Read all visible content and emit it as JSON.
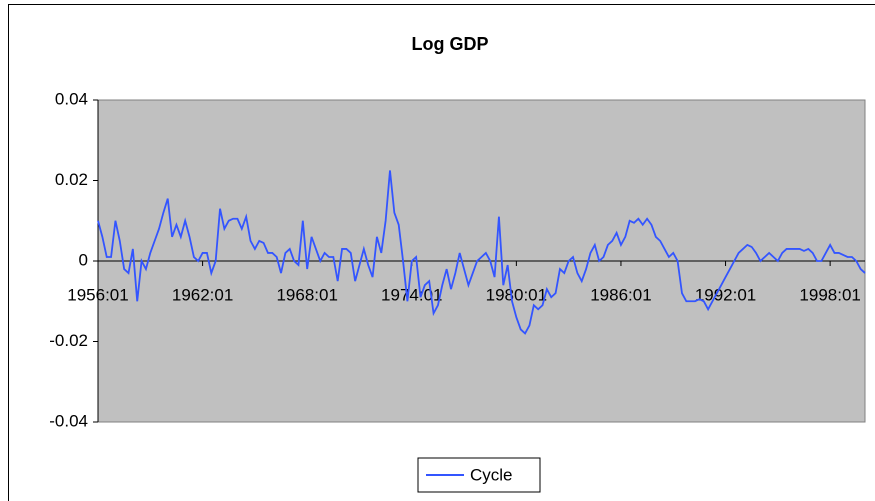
{
  "chart_data": {
    "type": "line",
    "title": "Log GDP",
    "categories": [
      "1956:01",
      null,
      null,
      null,
      null,
      null,
      null,
      null,
      null,
      null,
      null,
      null,
      null,
      null,
      null,
      null,
      null,
      null,
      null,
      null,
      null,
      null,
      null,
      null,
      "1962:01",
      null,
      null,
      null,
      null,
      null,
      null,
      null,
      null,
      null,
      null,
      null,
      null,
      null,
      null,
      null,
      null,
      null,
      null,
      null,
      null,
      null,
      null,
      null,
      "1968:01",
      null,
      null,
      null,
      null,
      null,
      null,
      null,
      null,
      null,
      null,
      null,
      null,
      null,
      null,
      null,
      null,
      null,
      null,
      null,
      null,
      null,
      null,
      null,
      "1974:01",
      null,
      null,
      null,
      null,
      null,
      null,
      null,
      null,
      null,
      null,
      null,
      null,
      null,
      null,
      null,
      null,
      null,
      null,
      null,
      null,
      null,
      null,
      null,
      "1980:01",
      null,
      null,
      null,
      null,
      null,
      null,
      null,
      null,
      null,
      null,
      null,
      null,
      null,
      null,
      null,
      null,
      null,
      null,
      null,
      null,
      null,
      null,
      null,
      "1986:01",
      null,
      null,
      null,
      null,
      null,
      null,
      null,
      null,
      null,
      null,
      null,
      null,
      null,
      null,
      null,
      null,
      null,
      null,
      null,
      null,
      null,
      null,
      null,
      "1992:01",
      null,
      null,
      null,
      null,
      null,
      null,
      null,
      null,
      null,
      null,
      null,
      null,
      null,
      null,
      null,
      null,
      null,
      null,
      null,
      null,
      null,
      null,
      null,
      "1998:01",
      null,
      null,
      null,
      null,
      null,
      null,
      null,
      null
    ],
    "series": [
      {
        "name": "Cycle",
        "color": "#3355ff",
        "values": [
          0.01,
          0.006,
          0.001,
          0.001,
          0.01,
          0.005,
          -0.002,
          -0.003,
          0.003,
          -0.01,
          0.0,
          -0.002,
          0.002,
          0.005,
          0.008,
          0.012,
          0.0155,
          0.006,
          0.009,
          0.006,
          0.01,
          0.006,
          0.001,
          0.0,
          0.002,
          0.002,
          -0.003,
          0.0,
          0.013,
          0.008,
          0.01,
          0.0105,
          0.0105,
          0.008,
          0.011,
          0.005,
          0.003,
          0.005,
          0.0045,
          0.002,
          0.002,
          0.001,
          -0.003,
          0.002,
          0.003,
          0.0,
          -0.001,
          0.01,
          -0.002,
          0.006,
          0.003,
          0.0,
          0.002,
          0.001,
          0.001,
          -0.005,
          0.003,
          0.003,
          0.002,
          -0.005,
          -0.001,
          0.003,
          -0.001,
          -0.004,
          0.006,
          0.002,
          0.01,
          0.0225,
          0.012,
          0.009,
          0.0,
          -0.01,
          0.0,
          0.001,
          -0.009,
          -0.006,
          -0.005,
          -0.013,
          -0.011,
          -0.006,
          -0.002,
          -0.007,
          -0.003,
          0.002,
          -0.002,
          -0.006,
          -0.003,
          0.0,
          0.001,
          0.002,
          0.0,
          -0.004,
          0.011,
          -0.006,
          -0.001,
          -0.01,
          -0.014,
          -0.017,
          -0.018,
          -0.016,
          -0.011,
          -0.012,
          -0.011,
          -0.007,
          -0.009,
          -0.008,
          -0.002,
          -0.003,
          0.0,
          0.001,
          -0.003,
          -0.005,
          -0.002,
          0.002,
          0.004,
          0.0,
          0.001,
          0.004,
          0.005,
          0.007,
          0.004,
          0.006,
          0.01,
          0.0095,
          0.0105,
          0.009,
          0.0105,
          0.009,
          0.006,
          0.005,
          0.003,
          0.001,
          0.002,
          0.0,
          -0.008,
          -0.01,
          -0.01,
          -0.01,
          -0.0095,
          -0.01,
          -0.012,
          -0.01,
          -0.008,
          -0.006,
          -0.004,
          -0.002,
          0.0,
          0.002,
          0.003,
          0.004,
          0.0035,
          0.002,
          0.0,
          0.001,
          0.002,
          0.001,
          0.0,
          0.002,
          0.003,
          0.003,
          0.003,
          0.003,
          0.0025,
          0.003,
          0.002,
          0.0,
          0.0,
          0.002,
          0.004,
          0.002,
          0.002,
          0.0015,
          0.001,
          0.001,
          0.0,
          -0.002,
          -0.003
        ]
      }
    ],
    "ylim": [
      -0.04,
      0.04
    ],
    "yticks": [
      -0.04,
      -0.02,
      0,
      0.02,
      0.04
    ],
    "plot_background": "#c0c0c0",
    "legend": "bottom"
  }
}
